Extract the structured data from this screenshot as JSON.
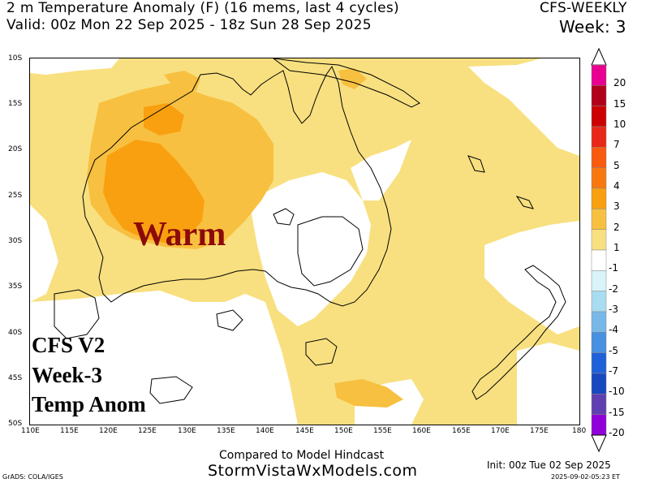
{
  "header": {
    "title_line": "2 m Temperature Anomaly (F) (16 mems, last 4 cycles)",
    "valid_line": "Valid: 00z Mon 22 Sep 2025 - 18z Sun 28 Sep 2025",
    "model_label": "CFS-WEEKLY",
    "week_label": "Week: 3"
  },
  "map": {
    "region": "Australia / New Zealand",
    "lat_labels": [
      "10S",
      "15S",
      "20S",
      "25S",
      "30S",
      "35S",
      "40S",
      "45S",
      "50S"
    ],
    "lon_labels": [
      "110E",
      "115E",
      "120E",
      "125E",
      "130E",
      "135E",
      "140E",
      "145E",
      "150E",
      "155E",
      "160E",
      "165E",
      "170E",
      "175E",
      "180"
    ],
    "annotation": "Warm",
    "overlay_lines": [
      "CFS V2",
      "Week-3",
      "Temp Anom"
    ]
  },
  "colorbar": {
    "labels": [
      "20",
      "15",
      "10",
      "7",
      "5",
      "4",
      "3",
      "2",
      "1",
      "-1",
      "-2",
      "-3",
      "-4",
      "-5",
      "-7",
      "-10",
      "-15",
      "-20"
    ],
    "colors": [
      "#e80090",
      "#b0001a",
      "#cc0000",
      "#e82818",
      "#f85a10",
      "#f87810",
      "#f8a010",
      "#f8c040",
      "#f8e080",
      "#ffffff",
      "#d8f4f8",
      "#a8dcf0",
      "#78b8e8",
      "#4890e0",
      "#2060d8",
      "#1848c0",
      "#6040b0",
      "#9000d8"
    ]
  },
  "footer": {
    "compare_text": "Compared to Model Hindcast",
    "site_text": "StormVistaWxModels.com",
    "init_text": "Init: 00z Tue 02 Sep 2025",
    "timestamp": "2025-09-02-05:23 ET",
    "grads_credit": "GrADS: COLA/IGES"
  }
}
